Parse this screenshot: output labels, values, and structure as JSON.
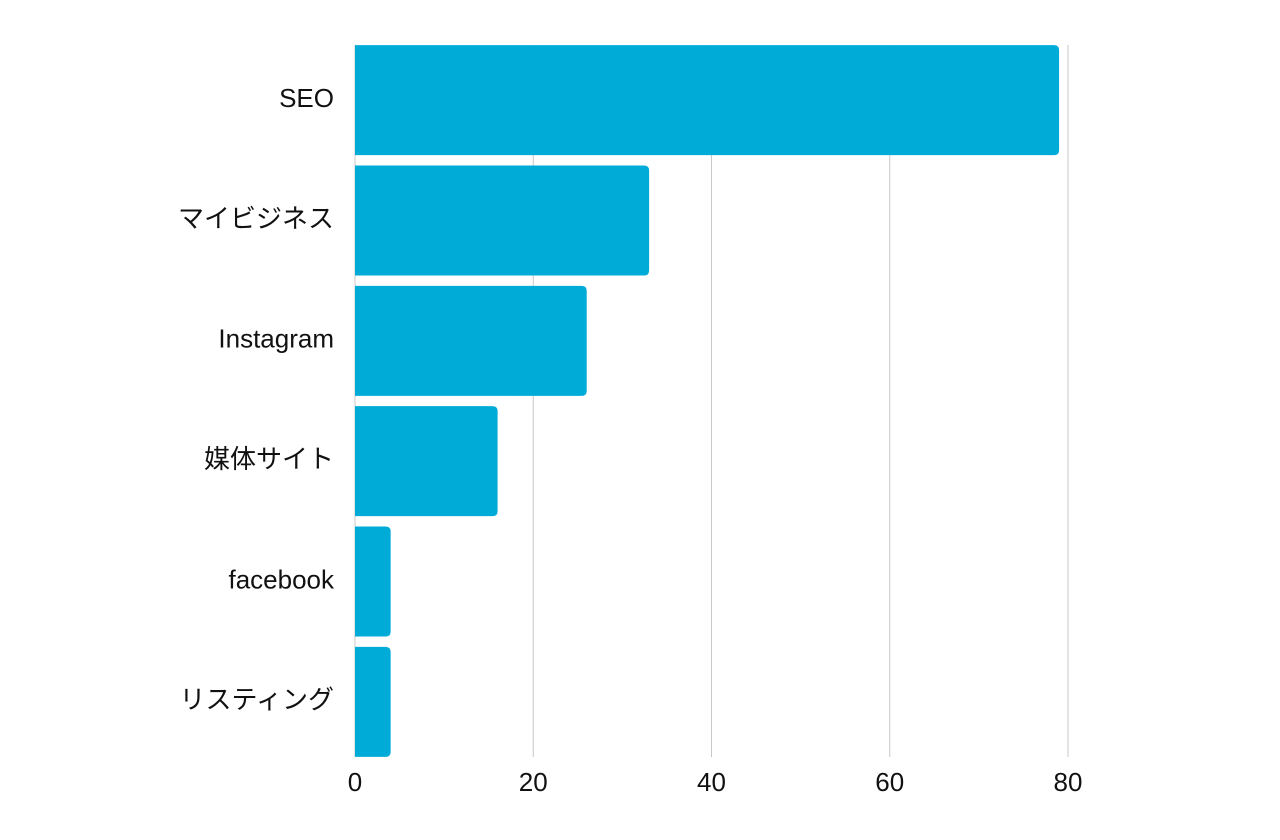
{
  "chart_data": {
    "type": "hbar",
    "categories": [
      "SEO",
      "マイビジネス",
      "Instagram",
      "媒体サイト",
      "facebook",
      "リスティング"
    ],
    "values": [
      79,
      33,
      26,
      16,
      4,
      4
    ],
    "color": "#00abd8",
    "xlim": [
      0,
      80
    ],
    "xticks": [
      0,
      20,
      40,
      60,
      80
    ],
    "grid": true
  }
}
